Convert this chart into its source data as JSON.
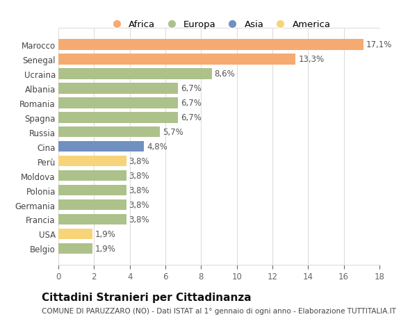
{
  "categories": [
    "Marocco",
    "Senegal",
    "Ucraina",
    "Albania",
    "Romania",
    "Spagna",
    "Russia",
    "Cina",
    "Perù",
    "Moldova",
    "Polonia",
    "Germania",
    "Francia",
    "USA",
    "Belgio"
  ],
  "values": [
    17.1,
    13.3,
    8.6,
    6.7,
    6.7,
    6.7,
    5.7,
    4.8,
    3.8,
    3.8,
    3.8,
    3.8,
    3.8,
    1.9,
    1.9
  ],
  "labels": [
    "17,1%",
    "13,3%",
    "8,6%",
    "6,7%",
    "6,7%",
    "6,7%",
    "5,7%",
    "4,8%",
    "3,8%",
    "3,8%",
    "3,8%",
    "3,8%",
    "3,8%",
    "1,9%",
    "1,9%"
  ],
  "colors": [
    "#f5aa72",
    "#f5aa72",
    "#adc18a",
    "#adc18a",
    "#adc18a",
    "#adc18a",
    "#adc18a",
    "#7090c0",
    "#f7d47a",
    "#adc18a",
    "#adc18a",
    "#adc18a",
    "#adc18a",
    "#f7d47a",
    "#adc18a"
  ],
  "legend": [
    {
      "label": "Africa",
      "color": "#f5aa72"
    },
    {
      "label": "Europa",
      "color": "#adc18a"
    },
    {
      "label": "Asia",
      "color": "#7090c0"
    },
    {
      "label": "America",
      "color": "#f7d47a"
    }
  ],
  "xlim": [
    0,
    18
  ],
  "xticks": [
    0,
    2,
    4,
    6,
    8,
    10,
    12,
    14,
    16,
    18
  ],
  "title": "Cittadini Stranieri per Cittadinanza",
  "subtitle": "COMUNE DI PARUZZARO (NO) - Dati ISTAT al 1° gennaio di ogni anno - Elaborazione TUTTITALIA.IT",
  "bg_color": "#ffffff",
  "grid_color": "#dddddd",
  "bar_height": 0.75,
  "label_fontsize": 8.5,
  "tick_fontsize": 8.5,
  "title_fontsize": 11,
  "subtitle_fontsize": 7.5
}
